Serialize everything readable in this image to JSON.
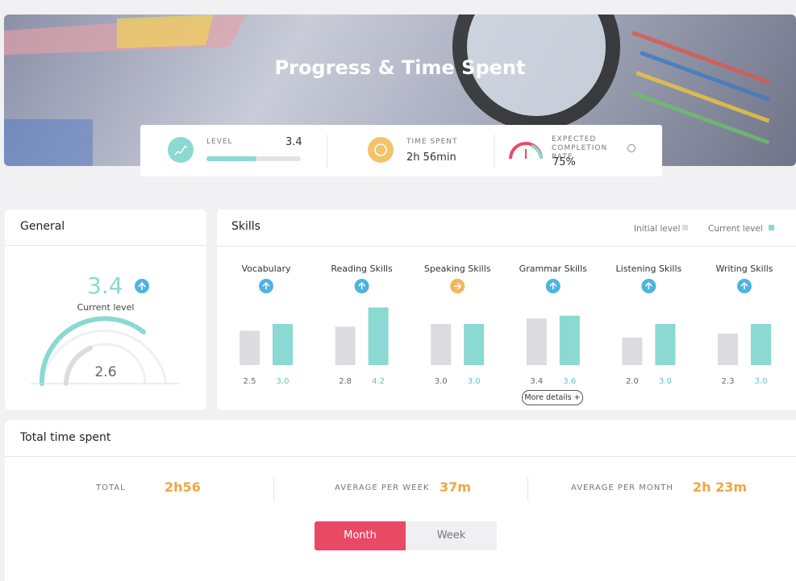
{
  "header": {
    "title": "Progress & Time Spent"
  },
  "stats": {
    "level": {
      "label": "LEVEL",
      "value": "3.4"
    },
    "time_spent": {
      "label": "TIME SPENT",
      "value": "2h 56min"
    },
    "completion": {
      "label": "EXPECTED COMPLETION RATE",
      "value": "75%"
    }
  },
  "general": {
    "title": "General",
    "current": "3.4",
    "current_label": "Current level",
    "initial": "2.6"
  },
  "skills": {
    "title": "Skills",
    "type": "bar",
    "categories": [
      "Vocabulary",
      "Reading Skills",
      "Speaking Skills",
      "Grammar Skills",
      "Listening Skills",
      "Writing Skills"
    ],
    "series": [
      {
        "name": "Initial level",
        "color": "#dcdbe0",
        "values": [
          2.5,
          2.8,
          3.0,
          3.4,
          2.0,
          2.3
        ],
        "value_labels": [
          "2.5",
          "2.8",
          "3.0",
          "3.4",
          "2.0",
          "2.3"
        ]
      },
      {
        "name": "Current level",
        "color": "#8ad9d2",
        "values": [
          3.0,
          4.2,
          3.0,
          3.6,
          3.0,
          3.0
        ],
        "value_labels": [
          "3.0",
          "4.2",
          "3.0",
          "3.6",
          "3.0",
          "3.0"
        ]
      }
    ],
    "more_details": "More details +"
  },
  "time": {
    "title": "Total time spent",
    "stats": [
      {
        "label": "TOTAL",
        "value": "2h56"
      },
      {
        "label": "AVERAGE PER WEEK",
        "value": "37m"
      },
      {
        "label": "AVERAGE PER MONTH",
        "value": "2h 23m"
      }
    ],
    "tabs": [
      "Month",
      "Week"
    ]
  }
}
